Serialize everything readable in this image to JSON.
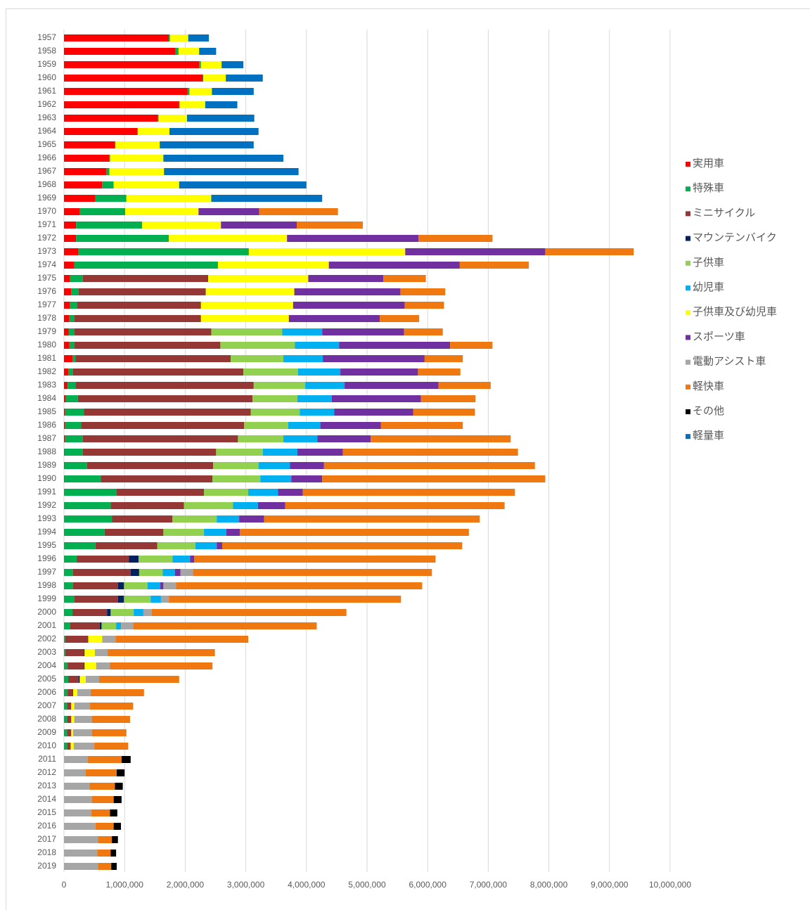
{
  "chart_data": {
    "type": "bar",
    "orientation": "horizontal",
    "stacked": true,
    "grid": true,
    "legend": "right",
    "categories": [
      "1957",
      "1958",
      "1959",
      "1960",
      "1961",
      "1962",
      "1963",
      "1964",
      "1965",
      "1966",
      "1967",
      "1968",
      "1969",
      "1970",
      "1971",
      "1972",
      "1973",
      "1974",
      "1975",
      "1976",
      "1977",
      "1978",
      "1979",
      "1980",
      "1981",
      "1982",
      "1983",
      "1984",
      "1985",
      "1986",
      "1987",
      "1988",
      "1989",
      "1990",
      "1991",
      "1992",
      "1993",
      "1994",
      "1995",
      "1996",
      "1997",
      "1998",
      "1999",
      "2000",
      "2001",
      "2002",
      "2003",
      "2004",
      "2005",
      "2006",
      "2007",
      "2008",
      "2009",
      "2010",
      "2011",
      "2012",
      "2013",
      "2014",
      "2015",
      "2016",
      "2017",
      "2018",
      "2019"
    ],
    "xlim": [
      0,
      10000000
    ],
    "xticks": [
      0,
      {
        "value": 1000000,
        "label": "1,000,000"
      },
      {
        "value": 2000000,
        "label": "2,000,000"
      },
      {
        "value": 3000000,
        "label": "3,000,000"
      },
      {
        "value": 4000000,
        "label": "4,000,000"
      },
      {
        "value": 5000000,
        "label": "5,000,000"
      },
      {
        "value": 6000000,
        "label": "6,000,000"
      },
      {
        "value": 7000000,
        "label": "7,000,000"
      },
      {
        "value": 8000000,
        "label": "8,000,000"
      },
      {
        "value": 9000000,
        "label": "9,000,000"
      },
      {
        "value": 10000000,
        "label": "10,000,000"
      }
    ],
    "series": [
      {
        "name": "実用車",
        "color": "#ff0000",
        "values": [
          1730000,
          1840000,
          2230000,
          2290000,
          2040000,
          1900000,
          1550000,
          1210000,
          840000,
          750000,
          700000,
          630000,
          520000,
          260000,
          200000,
          200000,
          240000,
          170000,
          100000,
          120000,
          100000,
          90000,
          80000,
          90000,
          140000,
          70000,
          60000,
          30000,
          20000,
          20000,
          20000,
          10000,
          10000,
          10000,
          null,
          null,
          null,
          null,
          null,
          null,
          null,
          null,
          null,
          null,
          null,
          null,
          null,
          null,
          null,
          null,
          null,
          null,
          null,
          null,
          null,
          null,
          null,
          null,
          null,
          null,
          null,
          null,
          null
        ]
      },
      {
        "name": "特殊車",
        "color": "#00b050",
        "values": [
          20000,
          50000,
          30000,
          10000,
          30000,
          10000,
          10000,
          10000,
          10000,
          10000,
          50000,
          190000,
          510000,
          750000,
          1090000,
          1530000,
          2810000,
          2370000,
          210000,
          120000,
          120000,
          80000,
          90000,
          80000,
          50000,
          80000,
          130000,
          200000,
          310000,
          260000,
          290000,
          300000,
          370000,
          600000,
          870000,
          770000,
          790000,
          670000,
          520000,
          210000,
          150000,
          150000,
          170000,
          140000,
          100000,
          20000,
          20000,
          60000,
          70000,
          60000,
          50000,
          50000,
          50000,
          50000,
          null,
          null,
          null,
          null,
          null,
          null,
          null,
          null,
          null
        ]
      },
      {
        "name": "ミニサイクル",
        "color": "#953735",
        "values": [
          null,
          null,
          null,
          null,
          null,
          null,
          null,
          null,
          null,
          null,
          null,
          null,
          null,
          null,
          null,
          null,
          null,
          null,
          2070000,
          2100000,
          2040000,
          2090000,
          2260000,
          2410000,
          2560000,
          2810000,
          2940000,
          2880000,
          2750000,
          2690000,
          2560000,
          2200000,
          2080000,
          1840000,
          1440000,
          1210000,
          1000000,
          970000,
          1020000,
          860000,
          950000,
          740000,
          720000,
          570000,
          490000,
          380000,
          310000,
          270000,
          170000,
          80000,
          70000,
          70000,
          70000,
          60000,
          null,
          null,
          null,
          null,
          null,
          null,
          null,
          null,
          null
        ]
      },
      {
        "name": "マウンテンバイク",
        "color": "#002060",
        "values": [
          null,
          null,
          null,
          null,
          null,
          null,
          null,
          null,
          null,
          null,
          null,
          null,
          null,
          null,
          null,
          null,
          null,
          null,
          null,
          null,
          null,
          null,
          null,
          null,
          null,
          null,
          null,
          null,
          null,
          null,
          null,
          null,
          null,
          null,
          null,
          null,
          null,
          null,
          null,
          160000,
          140000,
          100000,
          100000,
          60000,
          30000,
          null,
          10000,
          10000,
          20000,
          10000,
          null,
          null,
          null,
          null,
          null,
          null,
          null,
          null,
          null,
          null,
          null,
          null,
          null
        ]
      },
      {
        "name": "子供車",
        "color": "#92d050",
        "values": [
          null,
          null,
          null,
          null,
          null,
          null,
          null,
          null,
          null,
          null,
          null,
          null,
          null,
          null,
          null,
          null,
          null,
          null,
          null,
          null,
          null,
          null,
          1170000,
          1230000,
          870000,
          900000,
          850000,
          740000,
          810000,
          730000,
          750000,
          770000,
          750000,
          790000,
          730000,
          810000,
          730000,
          670000,
          630000,
          560000,
          390000,
          390000,
          440000,
          380000,
          240000,
          null,
          null,
          null,
          null,
          null,
          null,
          null,
          null,
          null,
          null,
          null,
          null,
          null,
          null,
          null,
          null,
          null,
          null
        ]
      },
      {
        "name": "幼児車",
        "color": "#00b0f0",
        "values": [
          null,
          null,
          null,
          null,
          null,
          null,
          null,
          null,
          null,
          null,
          null,
          null,
          null,
          null,
          null,
          null,
          null,
          null,
          null,
          null,
          null,
          null,
          660000,
          730000,
          650000,
          700000,
          650000,
          570000,
          570000,
          530000,
          560000,
          570000,
          520000,
          510000,
          490000,
          410000,
          370000,
          370000,
          350000,
          290000,
          200000,
          210000,
          170000,
          160000,
          80000,
          null,
          null,
          null,
          null,
          null,
          null,
          null,
          null,
          null,
          null,
          null,
          null,
          null,
          null,
          null,
          null,
          null,
          null
        ]
      },
      {
        "name": "子供車及び幼児車",
        "color": "#ffff00",
        "values": [
          300000,
          340000,
          340000,
          370000,
          370000,
          420000,
          470000,
          520000,
          730000,
          880000,
          900000,
          1080000,
          1400000,
          1210000,
          1300000,
          1950000,
          2580000,
          1830000,
          1650000,
          1460000,
          1520000,
          1450000,
          null,
          null,
          null,
          null,
          null,
          null,
          null,
          null,
          null,
          null,
          null,
          null,
          null,
          null,
          null,
          null,
          null,
          null,
          null,
          null,
          null,
          null,
          null,
          230000,
          170000,
          190000,
          100000,
          70000,
          50000,
          50000,
          30000,
          50000,
          null,
          null,
          null,
          null,
          null,
          null,
          null,
          null,
          null
        ]
      },
      {
        "name": "スポーツ車",
        "color": "#7030a0",
        "values": [
          null,
          null,
          null,
          null,
          null,
          null,
          null,
          null,
          null,
          null,
          null,
          null,
          null,
          1000000,
          1250000,
          2170000,
          2310000,
          2160000,
          1240000,
          1750000,
          1840000,
          1500000,
          1350000,
          1830000,
          1680000,
          1280000,
          1550000,
          1470000,
          1300000,
          1000000,
          880000,
          750000,
          560000,
          510000,
          410000,
          450000,
          410000,
          220000,
          90000,
          70000,
          90000,
          50000,
          null,
          null,
          null,
          null,
          null,
          null,
          null,
          null,
          null,
          null,
          null,
          null,
          null,
          null,
          null,
          null,
          null,
          null,
          null,
          null,
          null
        ]
      },
      {
        "name": "電動アシスト車",
        "color": "#a6a6a6",
        "values": [
          null,
          null,
          null,
          null,
          null,
          null,
          null,
          null,
          null,
          null,
          null,
          null,
          null,
          null,
          null,
          null,
          null,
          null,
          null,
          null,
          null,
          null,
          null,
          null,
          null,
          null,
          null,
          null,
          null,
          null,
          null,
          null,
          null,
          null,
          null,
          null,
          null,
          null,
          null,
          null,
          210000,
          210000,
          130000,
          140000,
          200000,
          220000,
          210000,
          230000,
          220000,
          220000,
          260000,
          290000,
          310000,
          340000,
          390000,
          360000,
          420000,
          460000,
          450000,
          520000,
          560000,
          550000,
          560000
        ]
      },
      {
        "name": "軽快車",
        "color": "#f07810",
        "values": [
          null,
          null,
          null,
          null,
          null,
          null,
          null,
          null,
          null,
          null,
          null,
          null,
          null,
          1300000,
          1090000,
          1220000,
          1460000,
          1140000,
          700000,
          740000,
          650000,
          650000,
          640000,
          700000,
          630000,
          700000,
          860000,
          900000,
          1020000,
          1350000,
          2310000,
          2890000,
          3480000,
          3680000,
          3500000,
          3620000,
          3560000,
          3780000,
          3960000,
          3980000,
          3940000,
          4060000,
          3830000,
          3210000,
          3030000,
          2190000,
          1770000,
          1690000,
          1320000,
          880000,
          710000,
          630000,
          570000,
          560000,
          560000,
          510000,
          420000,
          360000,
          310000,
          300000,
          230000,
          220000,
          220000
        ]
      },
      {
        "name": "その他",
        "color": "#000000",
        "values": [
          null,
          null,
          null,
          null,
          null,
          null,
          null,
          null,
          null,
          null,
          null,
          null,
          null,
          null,
          null,
          null,
          null,
          null,
          null,
          null,
          null,
          null,
          null,
          null,
          null,
          null,
          null,
          null,
          null,
          null,
          null,
          null,
          null,
          null,
          null,
          null,
          null,
          null,
          null,
          null,
          null,
          null,
          null,
          null,
          null,
          null,
          null,
          null,
          null,
          null,
          null,
          null,
          null,
          null,
          150000,
          130000,
          130000,
          130000,
          120000,
          120000,
          100000,
          90000,
          90000
        ]
      },
      {
        "name": "軽量車",
        "color": "#0070c0",
        "values": [
          340000,
          280000,
          360000,
          610000,
          690000,
          530000,
          1110000,
          1470000,
          1550000,
          1980000,
          2220000,
          2100000,
          1830000,
          null,
          null,
          null,
          null,
          null,
          null,
          null,
          null,
          null,
          null,
          null,
          null,
          null,
          null,
          null,
          null,
          null,
          null,
          null,
          null,
          null,
          null,
          null,
          null,
          null,
          null,
          null,
          null,
          null,
          null,
          null,
          null,
          null,
          null,
          null,
          null,
          null,
          null,
          null,
          null,
          null,
          null,
          null,
          null,
          null,
          null,
          null,
          null,
          null,
          null
        ]
      }
    ]
  }
}
